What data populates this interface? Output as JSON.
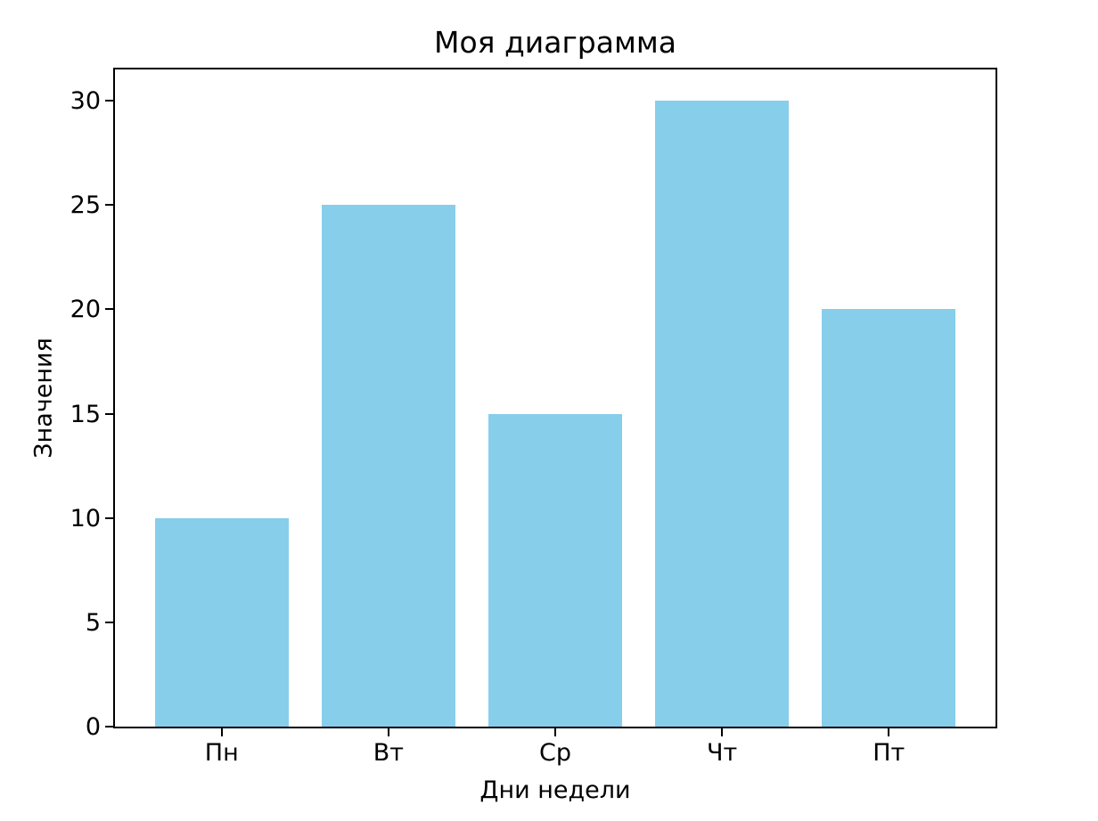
{
  "chart_data": {
    "type": "bar",
    "title": "Моя диаграмма",
    "xlabel": "Дни недели",
    "ylabel": "Значения",
    "categories": [
      "Пн",
      "Вт",
      "Ср",
      "Чт",
      "Пт"
    ],
    "values": [
      10,
      25,
      15,
      30,
      20
    ],
    "bar_color": "#87CEEB",
    "axis_color": "#000000",
    "background_color": "#ffffff",
    "ylim": [
      0,
      31.5
    ],
    "xlim": [
      -0.64,
      4.64
    ],
    "yticks": [
      0,
      5,
      10,
      15,
      20,
      25,
      30
    ],
    "bar_width_fraction": 0.8,
    "grid": false,
    "legend": "none"
  }
}
